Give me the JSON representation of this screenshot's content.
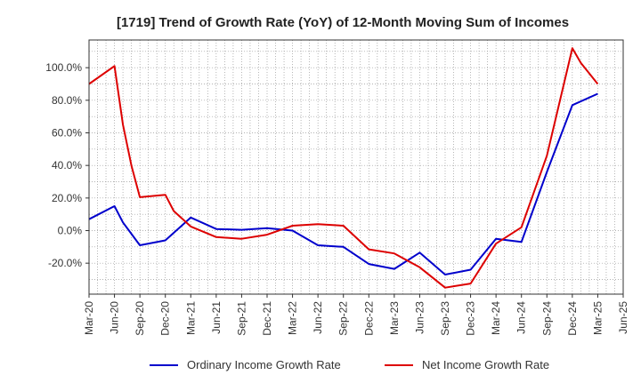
{
  "chart_data": {
    "type": "line",
    "title": "[1719]  Trend of Growth Rate (YoY) of 12-Month Moving Sum of Incomes",
    "xlabel": "",
    "ylabel": "",
    "x_tick_labels": [
      "Mar-20",
      "Jun-20",
      "Sep-20",
      "Dec-20",
      "Mar-21",
      "Jun-21",
      "Sep-21",
      "Dec-21",
      "Mar-22",
      "Jun-22",
      "Sep-22",
      "Dec-22",
      "Mar-23",
      "Jun-23",
      "Sep-23",
      "Dec-23",
      "Mar-24",
      "Jun-24",
      "Sep-24",
      "Dec-24",
      "Mar-25",
      "Jun-25"
    ],
    "y_ticks": [
      -20,
      0,
      20,
      40,
      60,
      80,
      100
    ],
    "y_tick_labels": [
      "-20.0%",
      "0.0%",
      "20.0%",
      "40.0%",
      "60.0%",
      "80.0%",
      "100.0%"
    ],
    "ylim": [
      -39,
      117
    ],
    "grid": true,
    "legend_position": "bottom",
    "series": [
      {
        "name": "Ordinary Income Growth Rate",
        "color": "#0000cc",
        "x": [
          "Mar-20",
          "Jun-20",
          "Jul-20",
          "Sep-20",
          "Dec-20",
          "Mar-21",
          "Jun-21",
          "Sep-21",
          "Dec-21",
          "Mar-22",
          "Jun-22",
          "Sep-22",
          "Dec-22",
          "Mar-23",
          "Jun-23",
          "Sep-23",
          "Dec-23",
          "Mar-24",
          "Jun-24",
          "Sep-24",
          "Dec-24",
          "Mar-25"
        ],
        "values": [
          7,
          15,
          5,
          -9,
          -6,
          8,
          1,
          0.5,
          1.5,
          0,
          -9,
          -10,
          -20.5,
          -23.5,
          -13.5,
          -27,
          -24,
          -5,
          -7,
          36,
          77,
          84
        ]
      },
      {
        "name": "Net Income Growth Rate",
        "color": "#dd0000",
        "x": [
          "Mar-20",
          "Jun-20",
          "Jul-20",
          "Aug-20",
          "Sep-20",
          "Dec-20",
          "Jan-21",
          "Mar-21",
          "Jun-21",
          "Sep-21",
          "Dec-21",
          "Mar-22",
          "Jun-22",
          "Sep-22",
          "Dec-22",
          "Mar-23",
          "Jun-23",
          "Sep-23",
          "Dec-23",
          "Mar-24",
          "Jun-24",
          "Sep-24",
          "Dec-24",
          "Jan-25",
          "Mar-25"
        ],
        "values": [
          90,
          101,
          65,
          40,
          20.5,
          22,
          12,
          2.5,
          -4,
          -5,
          -2.5,
          3,
          4,
          3,
          -11.5,
          -14,
          -22.5,
          -35,
          -32.5,
          -8,
          2,
          46,
          112,
          103,
          90
        ]
      }
    ]
  }
}
